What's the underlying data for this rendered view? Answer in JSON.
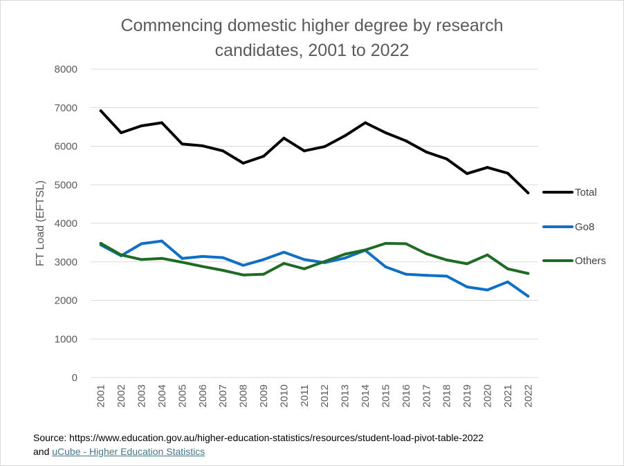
{
  "chart_data": {
    "type": "line",
    "title_line1": "Commencing domestic higher degree by research",
    "title_line2": "candidates, 2001 to 2022",
    "ylabel": "FT Load (EFTSL)",
    "xlabel": "",
    "ylim": [
      0,
      8000
    ],
    "yticks": [
      "0",
      "1000",
      "2000",
      "3000",
      "4000",
      "5000",
      "6000",
      "7000",
      "8000"
    ],
    "categories": [
      "2001",
      "2002",
      "2003",
      "2004",
      "2005",
      "2006",
      "2007",
      "2008",
      "2009",
      "2010",
      "2011",
      "2012",
      "2013",
      "2014",
      "2015",
      "2016",
      "2017",
      "2018",
      "2019",
      "2020",
      "2021",
      "2022"
    ],
    "grid": true,
    "legend_position": "right",
    "series": [
      {
        "name": "Total",
        "color": "#000000",
        "values": [
          6920,
          6350,
          6530,
          6610,
          6060,
          6010,
          5880,
          5560,
          5740,
          6210,
          5880,
          5990,
          6270,
          6610,
          6350,
          6140,
          5850,
          5670,
          5290,
          5450,
          5300,
          4790
        ]
      },
      {
        "name": "Go8",
        "color": "#0f6fc6",
        "values": [
          3440,
          3160,
          3470,
          3540,
          3090,
          3140,
          3110,
          2910,
          3060,
          3250,
          3060,
          2980,
          3100,
          3300,
          2870,
          2680,
          2650,
          2630,
          2350,
          2270,
          2480,
          2110
        ]
      },
      {
        "name": "Others",
        "color": "#1e6b24",
        "values": [
          3480,
          3180,
          3060,
          3090,
          2990,
          2880,
          2780,
          2660,
          2680,
          2960,
          2820,
          3010,
          3200,
          3310,
          3480,
          3470,
          3210,
          3050,
          2950,
          3180,
          2820,
          2700
        ]
      }
    ]
  },
  "source": {
    "line1": "Source: https://www.education.gov.au/higher-education-statistics/resources/student-load-pivot-table-2022",
    "and_text": "and ",
    "link_text": "uCube - Higher Education Statistics"
  }
}
